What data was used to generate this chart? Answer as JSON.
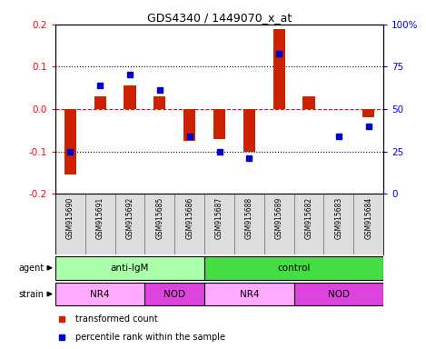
{
  "title": "GDS4340 / 1449070_x_at",
  "samples": [
    "GSM915690",
    "GSM915691",
    "GSM915692",
    "GSM915685",
    "GSM915686",
    "GSM915687",
    "GSM915688",
    "GSM915689",
    "GSM915682",
    "GSM915683",
    "GSM915684"
  ],
  "red_values": [
    -0.155,
    0.03,
    0.055,
    0.03,
    -0.075,
    -0.07,
    -0.1,
    0.19,
    0.03,
    0.0,
    -0.02
  ],
  "blue_values": [
    -0.1,
    0.055,
    0.082,
    0.045,
    -0.065,
    -0.1,
    -0.115,
    0.13,
    null,
    -0.065,
    -0.04
  ],
  "ylim": [
    -0.2,
    0.2
  ],
  "yticks_left": [
    -0.2,
    -0.1,
    0.0,
    0.1,
    0.2
  ],
  "yticks_right": [
    0,
    25,
    50,
    75,
    100
  ],
  "ytick_labels_right": [
    "0",
    "25",
    "50",
    "75",
    "100%"
  ],
  "bar_color": "#cc2200",
  "dot_color": "#0000cc",
  "agent_groups": [
    {
      "label": "anti-IgM",
      "start": 0,
      "end": 5,
      "color": "#aaffaa"
    },
    {
      "label": "control",
      "start": 5,
      "end": 11,
      "color": "#44dd44"
    }
  ],
  "strain_groups": [
    {
      "label": "NR4",
      "start": 0,
      "end": 3,
      "color": "#ffaaff"
    },
    {
      "label": "NOD",
      "start": 3,
      "end": 5,
      "color": "#dd44dd"
    },
    {
      "label": "NR4",
      "start": 5,
      "end": 8,
      "color": "#ffaaff"
    },
    {
      "label": "NOD",
      "start": 8,
      "end": 11,
      "color": "#dd44dd"
    }
  ],
  "legend_red": "transformed count",
  "legend_blue": "percentile rank within the sample",
  "sample_bg": "#dddddd",
  "plot_bg": "#ffffff"
}
